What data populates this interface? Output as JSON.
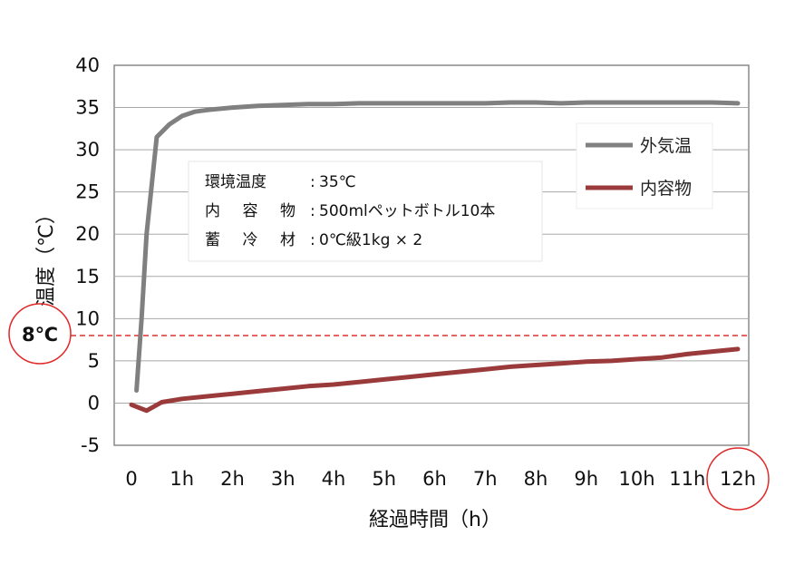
{
  "chart_data": {
    "type": "line",
    "xlabel": "経過時間（h）",
    "ylabel": "温度（℃）",
    "x_tick_labels": [
      "0",
      "1h",
      "2h",
      "3h",
      "4h",
      "5h",
      "6h",
      "7h",
      "8h",
      "9h",
      "10h",
      "11h",
      "12h"
    ],
    "y_ticks": [
      -5,
      0,
      5,
      10,
      15,
      20,
      25,
      30,
      35,
      40
    ],
    "xlim": [
      0,
      12
    ],
    "ylim": [
      -5,
      40
    ],
    "grid": "horizontal",
    "legend_position": "top-right",
    "colors": {
      "outside": "#808080",
      "inside": "#9b3a3a",
      "threshold": "#e03030",
      "circle": "#e02828"
    },
    "series": [
      {
        "name": "外気温",
        "x": [
          0.1,
          0.2,
          0.3,
          0.5,
          0.75,
          1.0,
          1.25,
          1.5,
          2.0,
          2.5,
          3.0,
          3.5,
          4.0,
          4.5,
          5.0,
          5.5,
          6.0,
          6.5,
          7.0,
          7.5,
          8.0,
          8.5,
          9.0,
          9.5,
          10.0,
          10.5,
          11.0,
          11.5,
          12.0
        ],
        "y": [
          1.5,
          10.0,
          20.0,
          31.5,
          33.0,
          34.0,
          34.5,
          34.7,
          35.0,
          35.2,
          35.3,
          35.4,
          35.4,
          35.5,
          35.5,
          35.5,
          35.5,
          35.5,
          35.5,
          35.6,
          35.6,
          35.5,
          35.6,
          35.6,
          35.6,
          35.6,
          35.6,
          35.6,
          35.5
        ]
      },
      {
        "name": "内容物",
        "x": [
          0,
          0.3,
          0.6,
          1.0,
          1.5,
          2.0,
          2.5,
          3.0,
          3.5,
          4.0,
          4.5,
          5.0,
          5.5,
          6.0,
          6.5,
          7.0,
          7.5,
          8.0,
          8.5,
          9.0,
          9.5,
          10.0,
          10.5,
          11.0,
          11.5,
          12.0
        ],
        "y": [
          -0.2,
          -0.9,
          0.1,
          0.5,
          0.8,
          1.1,
          1.4,
          1.7,
          2.0,
          2.2,
          2.5,
          2.8,
          3.1,
          3.4,
          3.7,
          4.0,
          4.3,
          4.5,
          4.7,
          4.9,
          5.0,
          5.2,
          5.4,
          5.8,
          6.1,
          6.4
        ]
      }
    ],
    "threshold": {
      "value": 8,
      "label": "8℃"
    },
    "highlight_tick": "12h",
    "info_box": {
      "lines": [
        {
          "key": "環境温度",
          "value": "35℃"
        },
        {
          "key": "内容物",
          "value": "500mlペットボトル10本"
        },
        {
          "key": "蓄冷材",
          "value": "0℃級1kg × 2"
        }
      ]
    }
  }
}
